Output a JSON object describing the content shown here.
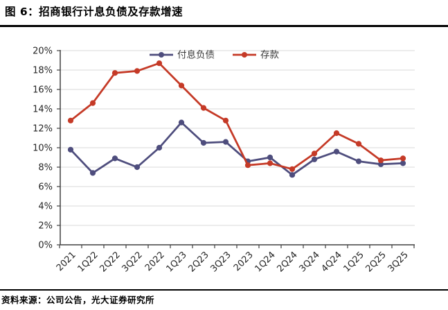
{
  "page": {
    "source": "资料来源：公司公告，光大证券研究所"
  },
  "chart_data": {
    "type": "line",
    "title": "图 6：招商银行计息负债及存款增速",
    "categories": [
      "2021",
      "1Q22",
      "2Q22",
      "3Q22",
      "2022",
      "1Q23",
      "2Q23",
      "3Q23",
      "2023",
      "1Q24",
      "2Q24",
      "3Q24",
      "4Q24",
      "1Q25",
      "2Q25",
      "3Q25"
    ],
    "series": [
      {
        "id": "liabilities",
        "name": "付息负债",
        "color": "#4E4D7D",
        "values": [
          9.8,
          7.4,
          8.9,
          8.0,
          10.0,
          12.6,
          10.5,
          10.6,
          8.6,
          9.0,
          7.2,
          8.8,
          9.6,
          8.6,
          8.3,
          8.4
        ]
      },
      {
        "id": "deposits",
        "name": "存款",
        "color": "#C53A27",
        "values": [
          12.8,
          14.6,
          17.7,
          17.9,
          18.7,
          16.4,
          14.1,
          12.8,
          8.2,
          8.4,
          7.8,
          9.4,
          11.5,
          10.4,
          8.7,
          8.9
        ]
      }
    ],
    "xlabel": "",
    "ylabel": "",
    "ylim": [
      0,
      20
    ],
    "ytick_step": 2,
    "ytick_labels": [
      "0%",
      "2%",
      "4%",
      "6%",
      "8%",
      "10%",
      "12%",
      "14%",
      "16%",
      "18%",
      "20%"
    ],
    "unit": "percent",
    "grid": "horizontal",
    "legend_position": "top-center",
    "marker": "circle",
    "colors": {
      "gridline": "#D9D9D9",
      "axis": "#404040",
      "tick_label": "#262626",
      "legend_label": "#3A3A3A"
    }
  }
}
